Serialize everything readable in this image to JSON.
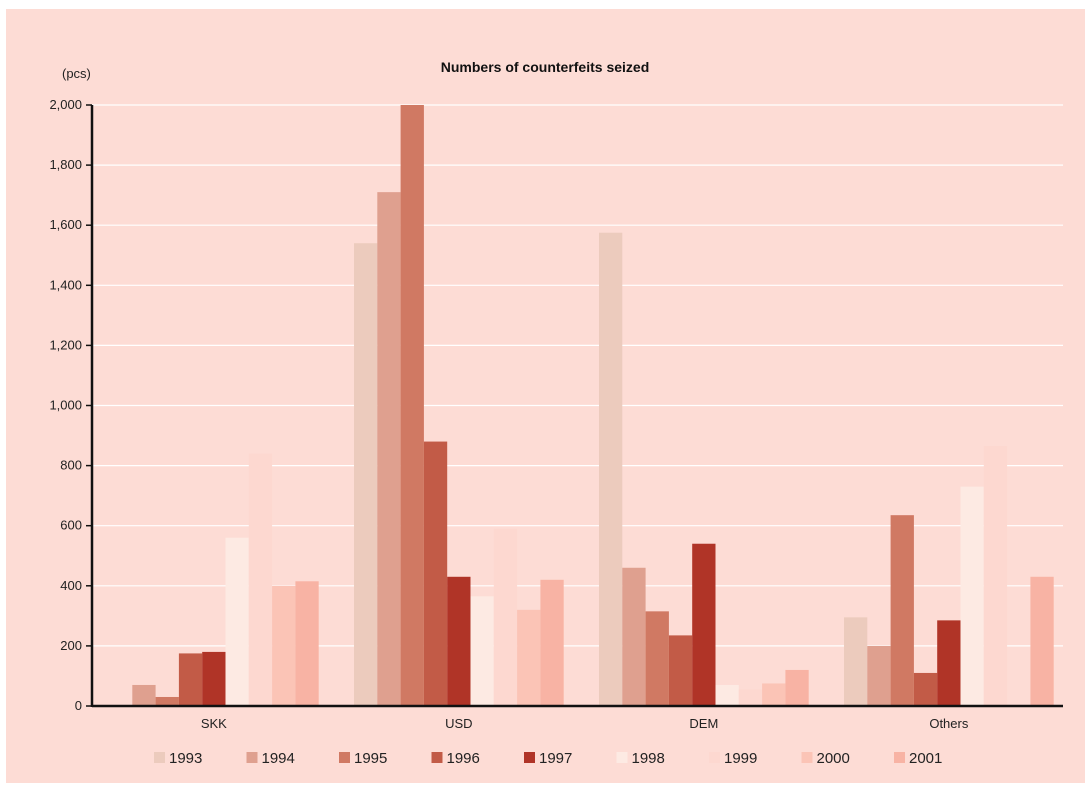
{
  "chart_data": {
    "type": "bar",
    "title": "Numbers of counterfeits seized",
    "ylabel": "(pcs)",
    "xlabel": "",
    "ylim": [
      0,
      2000
    ],
    "yticks": [
      0,
      200,
      400,
      600,
      800,
      1000,
      1200,
      1400,
      1600,
      1800,
      2000
    ],
    "ytick_labels": [
      "0",
      "200",
      "400",
      "600",
      "800",
      "1,000",
      "1,200",
      "1,400",
      "1,600",
      "1,800",
      "2,000"
    ],
    "grid": true,
    "legend_position": "bottom",
    "categories": [
      "SKK",
      "USD",
      "DEM",
      "Others"
    ],
    "series": [
      {
        "name": "1993",
        "color": "#eccbbd",
        "values": [
          0,
          1540,
          1575,
          295
        ]
      },
      {
        "name": "1994",
        "color": "#dfa08f",
        "values": [
          70,
          1710,
          460,
          200
        ]
      },
      {
        "name": "1995",
        "color": "#d07963",
        "values": [
          30,
          2000,
          315,
          635
        ]
      },
      {
        "name": "1996",
        "color": "#c25b47",
        "values": [
          175,
          880,
          235,
          110
        ]
      },
      {
        "name": "1997",
        "color": "#b03427",
        "values": [
          180,
          430,
          540,
          285
        ]
      },
      {
        "name": "1998",
        "color": "#fdeae3",
        "values": [
          560,
          365,
          70,
          730
        ]
      },
      {
        "name": "1999",
        "color": "#fdd8d0",
        "values": [
          840,
          590,
          55,
          865
        ]
      },
      {
        "name": "2000",
        "color": "#fbc4b6",
        "values": [
          400,
          320,
          75,
          0
        ]
      },
      {
        "name": "2001",
        "color": "#f8b3a4",
        "values": [
          415,
          420,
          120,
          430
        ]
      }
    ]
  }
}
